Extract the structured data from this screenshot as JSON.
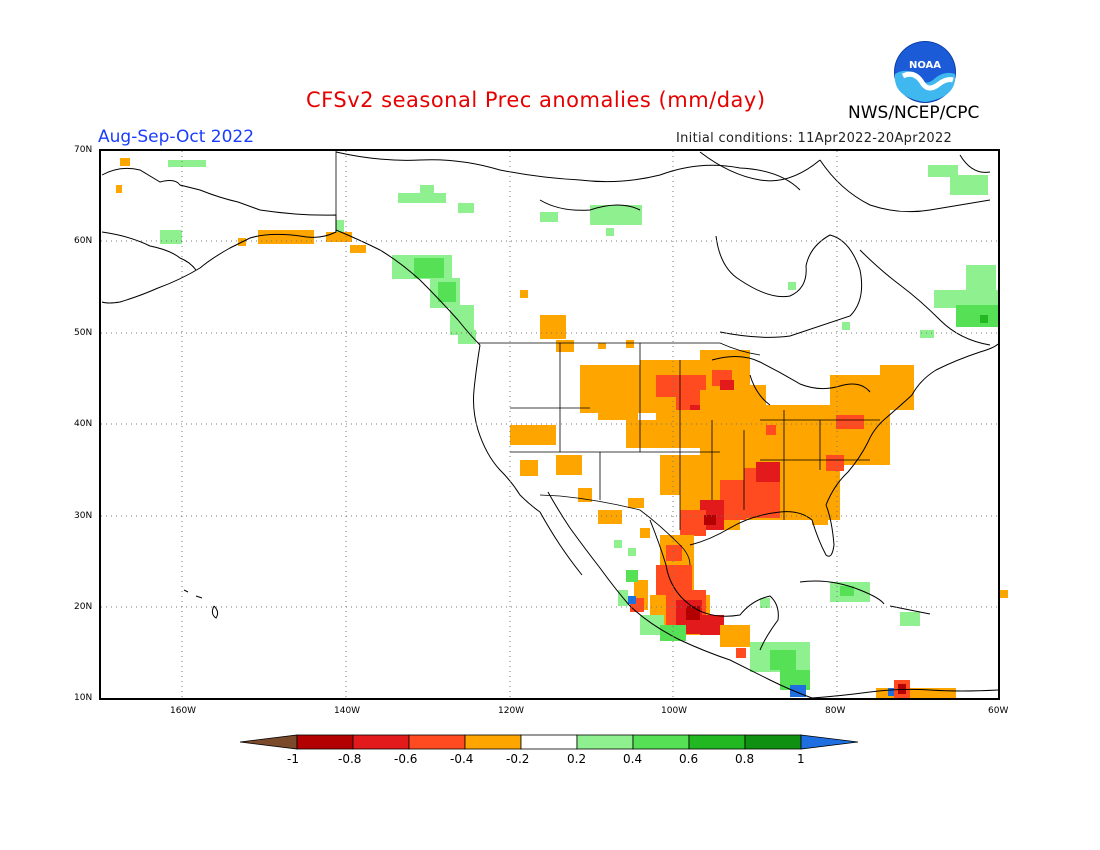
{
  "header": {
    "title": "CFSv2 seasonal Prec anomalies (mm/day)",
    "agency": "NWS/NCEP/CPC",
    "logo_text": "NOAA",
    "period": "Aug-Sep-Oct 2022",
    "initial_conditions": "Initial conditions: 11Apr2022-20Apr2022"
  },
  "map": {
    "lat_labels": [
      "70N",
      "60N",
      "50N",
      "40N",
      "30N",
      "20N",
      "10N"
    ],
    "lon_labels": [
      "160W",
      "140W",
      "120W",
      "100W",
      "80W",
      "60W"
    ],
    "gridlines": true
  },
  "colorbar": {
    "tick_labels": [
      "-1",
      "-0.8",
      "-0.6",
      "-0.4",
      "-0.2",
      "0.2",
      "0.4",
      "0.6",
      "0.8",
      "1"
    ],
    "bins": [
      {
        "range": "< -1",
        "color": "#7a4a2a"
      },
      {
        "range": "-1 to -0.8",
        "color": "#b30000"
      },
      {
        "range": "-0.8 to -0.6",
        "color": "#e31a1c"
      },
      {
        "range": "-0.6 to -0.4",
        "color": "#ff4b1f"
      },
      {
        "range": "-0.4 to -0.2",
        "color": "#ffa500"
      },
      {
        "range": "-0.2 to 0.2",
        "color": "#ffffff"
      },
      {
        "range": "0.2 to 0.4",
        "color": "#8ff08f"
      },
      {
        "range": "0.4 to 0.6",
        "color": "#55e055"
      },
      {
        "range": "0.6 to 0.8",
        "color": "#22b822"
      },
      {
        "range": "0.8 to 1",
        "color": "#109010"
      },
      {
        "range": "> 1",
        "color": "#1f6fe0"
      }
    ]
  }
}
